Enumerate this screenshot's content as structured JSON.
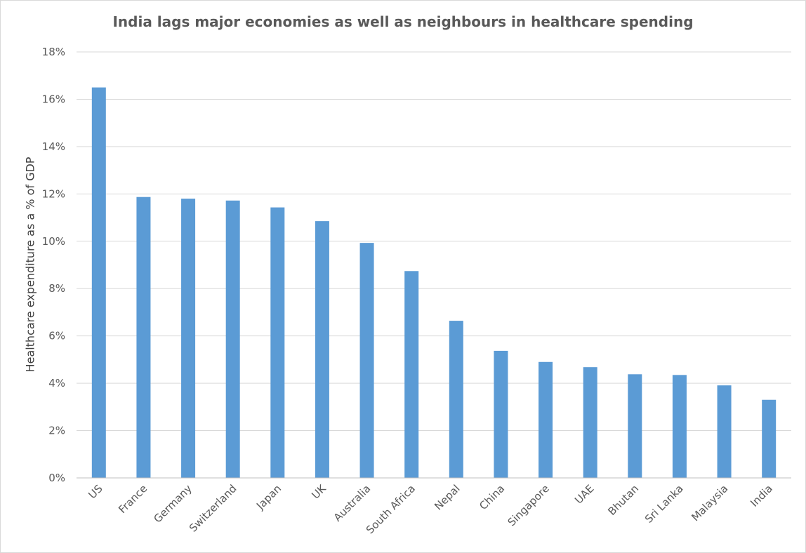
{
  "chart_data": {
    "type": "bar",
    "title": "India lags major economies as well as neighbours in healthcare spending",
    "xlabel": "",
    "ylabel": "Healthcare expenditure as a % of GDP",
    "categories": [
      "US",
      "France",
      "Germany",
      "Switzerland",
      "Japan",
      "UK",
      "Australia",
      "South Africa",
      "Nepal",
      "China",
      "Singapore",
      "UAE",
      "Bhutan",
      "Sri Lanka",
      "Malaysia",
      "India"
    ],
    "values": [
      16.5,
      11.87,
      11.8,
      11.72,
      11.43,
      10.85,
      9.93,
      8.74,
      6.64,
      5.37,
      4.9,
      4.68,
      4.38,
      4.35,
      3.91,
      3.3
    ],
    "ylim": [
      0,
      18
    ],
    "yticks": [
      0,
      2,
      4,
      6,
      8,
      10,
      12,
      14,
      16,
      18
    ],
    "ytick_labels": [
      "0%",
      "2%",
      "4%",
      "6%",
      "8%",
      "10%",
      "12%",
      "14%",
      "16%",
      "18%"
    ],
    "grid": true,
    "legend": "none",
    "colors": {
      "bar": "#5b9bd5",
      "grid": "#d9d9d9",
      "text": "#595959"
    }
  }
}
